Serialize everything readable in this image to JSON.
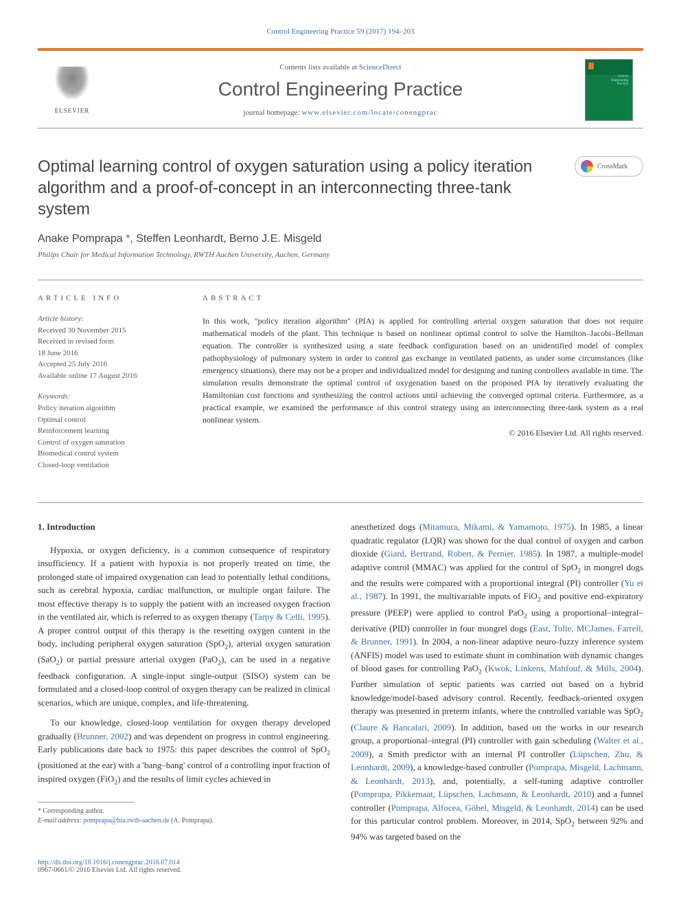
{
  "top_citation": "Control Engineering Practice 59 (2017) 194–203",
  "header": {
    "contents_line_prefix": "Contents lists available at ",
    "contents_site": "ScienceDirect",
    "journal_name": "Control Engineering Practice",
    "homepage_prefix": "journal homepage: ",
    "homepage_url": "www.elsevier.com/locate/conengprac",
    "publisher_name": "ELSEVIER",
    "thumb_label": "Control\nEngineering\nPractice"
  },
  "crossmark_label": "CrossMark",
  "title": "Optimal learning control of oxygen saturation using a policy iteration algorithm and a proof-of-concept in an interconnecting three-tank system",
  "authors_html": "Anake Pomprapa <span class='author-link'>*</span>, Steffen Leonhardt, Berno J.E. Misgeld",
  "affiliation": "Philips Chair for Medical Information Technology, RWTH Aachen University, Aachen, Germany",
  "article_info": {
    "heading": "ARTICLE INFO",
    "history_label": "Article history:",
    "history": "Received 30 November 2015\nReceived in revised form\n18 June 2016\nAccepted 25 July 2016\nAvailable online 17 August 2016",
    "keywords_label": "Keywords:",
    "keywords": "Policy iteration algorithm\nOptimal control\nReinforcement learning\nControl of oxygen saturation\nBiomedical control system\nClosed-loop ventilation"
  },
  "abstract": {
    "heading": "ABSTRACT",
    "text": "In this work, \"policy iteration algorithm\" (PIA) is applied for controlling arterial oxygen saturation that does not require mathematical models of the plant. This technique is based on nonlinear optimal control to solve the Hamilton–Jacobi–Bellman equation. The controller is synthesized using a state feedback configuration based on an unidentified model of complex pathophysiology of pulmonary system in order to control gas exchange in ventilated patients, as under some circumstances (like emergency situations), there may not be a proper and individualized model for designing and tuning controllers available in time. The simulation results demonstrate the optimal control of oxygenation based on the proposed PIA by iteratively evaluating the Hamiltonian cost functions and synthesizing the control actions until achieving the converged optimal criteria. Furthermore, as a practical example, we examined the performance of this control strategy using an interconnecting three-tank system as a real nonlinear system.",
    "copyright": "© 2016 Elsevier Ltd. All rights reserved."
  },
  "body": {
    "section_heading": "1. Introduction",
    "col1_p1_a": "Hypoxia, or oxygen deficiency, is a common consequence of respiratory insufficiency. If a patient with hypoxia is not properly treated on time, the prolonged state of impaired oxygenation can lead to potentially lethal conditions, such as cerebral hypoxia, cardiac malfunction, or multiple organ failure. The most effective therapy is to supply the patient with an increased oxygen fraction in the ventilated air, which is referred to as oxygen therapy (",
    "col1_p1_cite1": "Tarpy & Celli, 1995",
    "col1_p1_b": "). A proper control output of this therapy is the resetting oxygen content in the body, including peripheral oxygen saturation (SpO",
    "col1_p1_c": "), arterial oxygen saturation (SaO",
    "col1_p1_d": ") or partial pressure arterial oxygen (PaO",
    "col1_p1_e": "), can be used in a negative feedback configuration. A single-input single-output (SISO) system can be formulated and a closed-loop control of oxygen therapy can be realized in clinical scenarios, which are unique, complex, and life-threatening.",
    "col1_p2_a": "To our knowledge, closed-loop ventilation for oxygen therapy developed gradually (",
    "col1_p2_cite1": "Brunner, 2002",
    "col1_p2_b": ") and was dependent on progress in control engineering. Early publications date back to 1975: this paper describes the control of SpO",
    "col1_p2_c": " (positioned at the ear) with a 'bang–bang' control of a controlling input fraction of inspired oxygen (FiO",
    "col1_p2_d": ") and the results of limit cycles achieved in",
    "col2_a": "anesthetized dogs (",
    "col2_cite1": "Mitamura, Mikami, & Yamamoto, 1975",
    "col2_b": "). In 1985, a linear quadratic regulator (LQR) was shown for the dual control of oxygen and carbon dioxide (",
    "col2_cite2": "Giard, Bertrand, Robert, & Pernier, 1985",
    "col2_c": "). In 1987, a multiple-model adaptive control (MMAC) was applied for the control of SpO",
    "col2_d": " in mongrel dogs and the results were compared with a proportional integral (PI) controller (",
    "col2_cite3": "Yu et al., 1987",
    "col2_e": "). In 1991, the multivariable inputs of FiO",
    "col2_f": " and positive end-expiratory pressure (PEEP) were applied to control PaO",
    "col2_g": " using a proportional–integral–derivative (PID) controller in four mongrel dogs (",
    "col2_cite4": "East, Tolle, MCJames, Farrell, & Brunner, 1991",
    "col2_h": "). In 2004, a non-linear adaptive neuro-fuzzy inference system (ANFIS) model was used to estimate shunt in combination with dynamic changes of blood gases for controlling PaO",
    "col2_i": " (",
    "col2_cite5": "Kwok, Linkens, Mahfouf, & Mills, 2004",
    "col2_j": "). Further simulation of septic patients was carried out based on a hybrid knowledge/model-based advisory control. Recently, feedback-oriented oxygen therapy was presented in preterm infants, where the controlled variable was SpO",
    "col2_k": " (",
    "col2_cite6": "Claure & Bancalari, 2009",
    "col2_l": "). In addition, based on the works in our research group, a proportional–integral (PI) controller with gain scheduling (",
    "col2_cite7": "Walter et al., 2009",
    "col2_m": "), a Smith predictor with an internal PI controller (",
    "col2_cite8": "Lüpschen, Zhu, & Leonhardt, 2009",
    "col2_n": "), a knowledge-based controller (",
    "col2_cite9": "Pomprapa, Misgeld, Lachmann, & Leonhardt, 2013",
    "col2_o": "), and, potentially, a self-tuning adaptive controller (",
    "col2_cite10": "Pomprapa, Pikkemaat, Lüpschen, Lachmann, & Leonhardt, 2010",
    "col2_p": ") and a funnel controller (",
    "col2_cite11": "Pomprapa, Alfocea, Göbel, Misgeld, & Leonhardt, 2014",
    "col2_q": ") can be used for this particular control problem. Moreover, in 2014, SpO",
    "col2_r": " between 92% and 94% was targeted based on the"
  },
  "footnotes": {
    "corr": "* Corresponding author.",
    "email_label": "E-mail address: ",
    "email": "pomprapa@hia.rwth-aachen.de",
    "email_suffix": " (A. Pomprapa).",
    "doi": "http://dx.doi.org/10.1016/j.conengprac.2016.07.014",
    "issn": "0967-0661/© 2016 Elsevier Ltd. All rights reserved."
  },
  "colors": {
    "link": "#3a6ea5",
    "accent": "#e87722",
    "text": "#333333",
    "muted": "#555555"
  }
}
